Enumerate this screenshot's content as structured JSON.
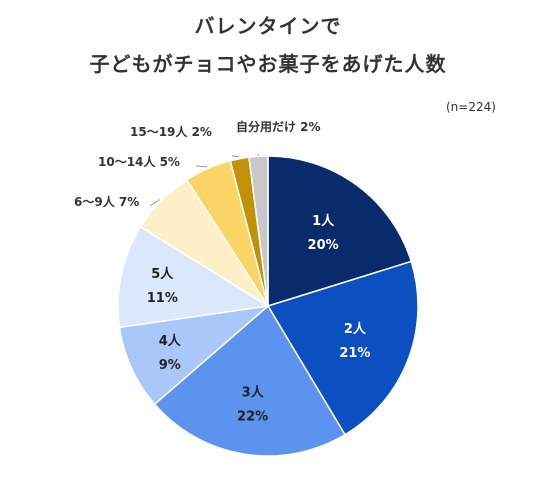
{
  "title_line1": "バレンタインで",
  "title_line2": "子どもがチョコやお菓子をあげた人数",
  "sample_size": "(n=224)",
  "chart_data": {
    "type": "pie",
    "title": "バレンタインで 子どもがチョコやお菓子をあげた人数",
    "slices": [
      {
        "label": "1人",
        "value": 20,
        "pct": "20%",
        "color": "#0a2b6b",
        "text_color": "#ffffff"
      },
      {
        "label": "2人",
        "value": 21,
        "pct": "21%",
        "color": "#0b4fc0",
        "text_color": "#ffffff"
      },
      {
        "label": "3人",
        "value": 22,
        "pct": "22%",
        "color": "#5b93ef",
        "text_color": "#222222"
      },
      {
        "label": "4人",
        "value": 9,
        "pct": "9%",
        "color": "#a9c7f8",
        "text_color": "#222222"
      },
      {
        "label": "5人",
        "value": 11,
        "pct": "11%",
        "color": "#dbe7fb",
        "text_color": "#222222"
      },
      {
        "label": "6〜9人",
        "value": 7,
        "pct": "7%",
        "color": "#fdf0c6",
        "text_color": "#222222"
      },
      {
        "label": "10〜14人",
        "value": 5,
        "pct": "5%",
        "color": "#fbd466",
        "text_color": "#222222"
      },
      {
        "label": "15〜19人",
        "value": 2,
        "pct": "2%",
        "color": "#c19208",
        "text_color": "#222222"
      },
      {
        "label": "自分用だけ",
        "value": 2,
        "pct": "2%",
        "color": "#c8c8c8",
        "text_color": "#222222"
      }
    ]
  }
}
